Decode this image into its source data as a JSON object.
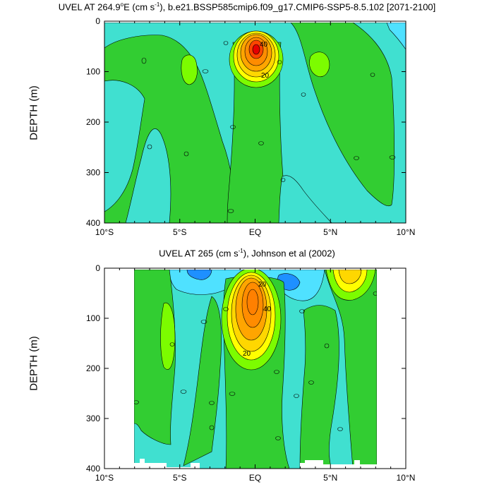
{
  "chart_data": [
    {
      "type": "heatmap",
      "subtype": "filled-contour",
      "title_main": "UVEL AT 264.9",
      "title_deg": "o",
      "title_mid": "E (cm s",
      "title_exp": "-1",
      "title_tail": "), b.e21.BSSP585cmip6.f09_g17.CMIP6-SSP5-8.5.102 [2071-2100]",
      "ylabel": "DEPTH (m)",
      "ylim": [
        400,
        0
      ],
      "xlim": [
        -10,
        10
      ],
      "yticks": [
        "0",
        "100",
        "200",
        "300",
        "400"
      ],
      "xticks": [
        "10°S",
        "5°S",
        "EQ",
        "5°N",
        "10°N"
      ],
      "contour_labels": [
        "40",
        "20"
      ],
      "core": {
        "lat": 0,
        "depth": 70,
        "max_speed": 60
      },
      "colors": [
        "#1e90ff",
        "#40e0d0",
        "#4fe1ff",
        "#7fffd4",
        "#32cd32",
        "#7cfc00",
        "#ffff00",
        "#ffd700",
        "#ffa500",
        "#ff8c00",
        "#ff4500",
        "#e60000"
      ]
    },
    {
      "type": "heatmap",
      "subtype": "filled-contour",
      "title_main": "UVEL AT 265 (cm s",
      "title_exp": "-1",
      "title_tail": "), Johnson et al (2002)",
      "ylabel": "DEPTH (m)",
      "ylim": [
        400,
        0
      ],
      "xlim": [
        -10,
        10
      ],
      "data_extent_lat": [
        -8,
        8
      ],
      "yticks": [
        "0",
        "100",
        "200",
        "300",
        "400"
      ],
      "xticks": [
        "10°S",
        "5°S",
        "EQ",
        "5°N",
        "10°N"
      ],
      "contour_labels": [
        "20",
        "40",
        "20"
      ],
      "core": {
        "lat": 0,
        "depth": 70,
        "max_speed": 50
      },
      "colors": [
        "#1e90ff",
        "#40e0d0",
        "#4fe1ff",
        "#7fffd4",
        "#32cd32",
        "#7cfc00",
        "#ffff00",
        "#ffd700",
        "#ffa500",
        "#ff8c00"
      ]
    }
  ]
}
